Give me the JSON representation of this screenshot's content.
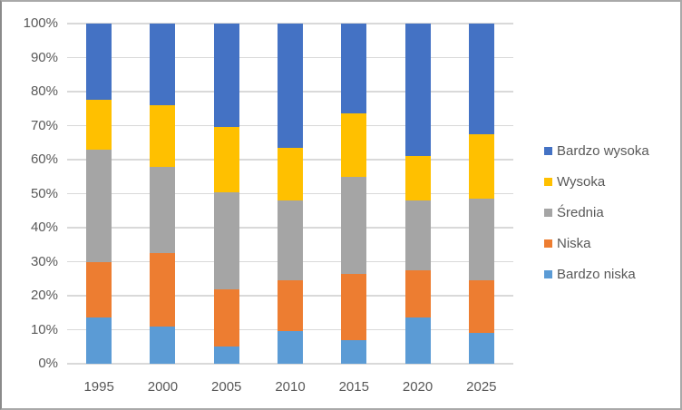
{
  "chart_data": {
    "type": "bar",
    "variant": "stacked-100-percent-column",
    "title": "",
    "categories": [
      "1995",
      "2000",
      "2005",
      "2010",
      "2015",
      "2020",
      "2025"
    ],
    "series": [
      {
        "name": "Bardzo niska",
        "color": "#5B9BD5",
        "values": [
          13.5,
          11.0,
          5.0,
          9.5,
          7.0,
          13.5,
          9.0
        ]
      },
      {
        "name": "Niska",
        "color": "#ED7D31",
        "values": [
          16.5,
          21.5,
          17.0,
          15.0,
          19.5,
          14.0,
          15.5
        ]
      },
      {
        "name": "Średnia",
        "color": "#A5A5A5",
        "values": [
          33.0,
          25.5,
          28.5,
          23.5,
          28.5,
          20.5,
          24.0
        ]
      },
      {
        "name": "Wysoka",
        "color": "#FFC000",
        "values": [
          14.5,
          18.0,
          19.0,
          15.5,
          18.5,
          13.0,
          19.0
        ]
      },
      {
        "name": "Bardzo wysoka",
        "color": "#4472C4",
        "values": [
          22.5,
          24.0,
          30.5,
          36.5,
          26.5,
          39.0,
          32.5
        ]
      }
    ],
    "y_axis": {
      "min": 0,
      "max": 100,
      "tick_step": 10,
      "ticks": [
        "100%",
        "90%",
        "80%",
        "70%",
        "60%",
        "50%",
        "40%",
        "30%",
        "20%",
        "10%",
        "0%"
      ]
    },
    "x_axis": {
      "ticks": [
        "1995",
        "2000",
        "2005",
        "2010",
        "2015",
        "2020",
        "2025"
      ]
    },
    "legend": {
      "position": "right",
      "entries": [
        "Bardzo wysoka",
        "Wysoka",
        "Średnia",
        "Niska",
        "Bardzo niska"
      ]
    },
    "style": {
      "gridline_color": "#d9d9d9",
      "text_color": "#595959",
      "background": "#ffffff",
      "frame_border_color": "#a9a9a9"
    }
  }
}
